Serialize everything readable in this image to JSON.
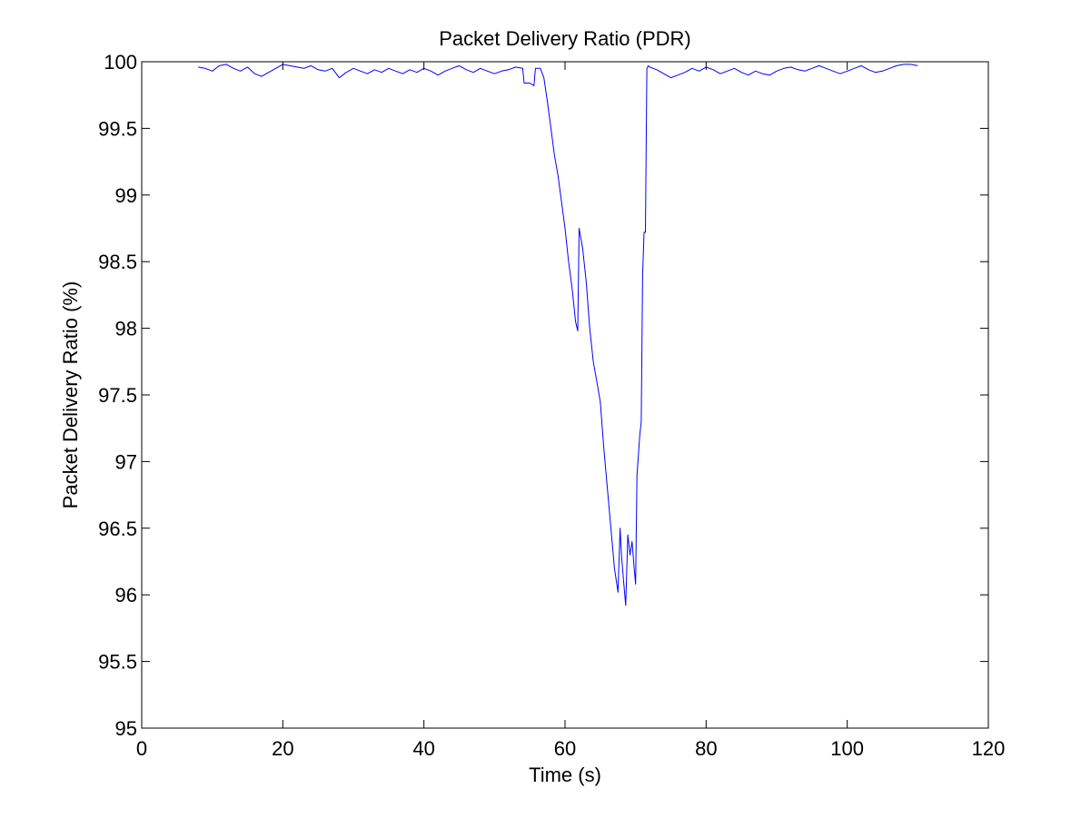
{
  "colors": {
    "background": "#ffffff",
    "axes": "#000000",
    "series_line": "#0000ff"
  },
  "chart_data": {
    "type": "line",
    "title": "Packet Delivery Ratio (PDR)",
    "xlabel": "Time (s)",
    "ylabel": "Packet Delivery Ratio (%)",
    "xlim": [
      0,
      120
    ],
    "ylim": [
      95,
      100
    ],
    "xticks": [
      0,
      20,
      40,
      60,
      80,
      100,
      120
    ],
    "xtick_labels": [
      "0",
      "20",
      "40",
      "60",
      "80",
      "100",
      "120"
    ],
    "yticks": [
      95,
      95.5,
      96,
      96.5,
      97,
      97.5,
      98,
      98.5,
      99,
      99.5,
      100
    ],
    "ytick_labels": [
      "95",
      "95.5",
      "96",
      "96.5",
      "97",
      "97.5",
      "98",
      "98.5",
      "99",
      "99.5",
      "100"
    ],
    "grid": false,
    "legend": "none",
    "series": [
      {
        "x": [
          8.0,
          9.0,
          10.0,
          11.0,
          12.0,
          13.0,
          14.0,
          15.0,
          16.0,
          17.0,
          18.0,
          19.0,
          20.0,
          21.0,
          22.0,
          23.0,
          24.0,
          25.0,
          26.0,
          27.0,
          28.0,
          29.0,
          30.0,
          31.0,
          32.0,
          33.0,
          34.0,
          35.0,
          36.0,
          37.0,
          38.0,
          39.0,
          40.0,
          41.0,
          42.0,
          43.0,
          44.0,
          45.0,
          46.0,
          47.0,
          48.0,
          49.0,
          50.0,
          51.0,
          52.0,
          53.0,
          54.0,
          54.2,
          55.0,
          55.6,
          55.8,
          56.5,
          57.0,
          57.5,
          58.0,
          58.5,
          59.0,
          59.5,
          60.0,
          60.5,
          61.0,
          61.5,
          61.8,
          62.0,
          62.5,
          63.0,
          63.5,
          64.0,
          64.5,
          65.0,
          65.5,
          66.0,
          66.5,
          67.0,
          67.5,
          67.8,
          68.0,
          68.3,
          68.6,
          68.9,
          69.2,
          69.5,
          69.8,
          70.0,
          70.2,
          70.4,
          70.6,
          70.8,
          71.0,
          71.2,
          71.4,
          71.6,
          71.8,
          72.0,
          73.0,
          74.0,
          75.0,
          76.0,
          77.0,
          78.0,
          79.0,
          80.0,
          81.0,
          82.0,
          83.0,
          84.0,
          85.0,
          86.0,
          87.0,
          88.0,
          89.0,
          90.0,
          91.0,
          92.0,
          93.0,
          94.0,
          95.0,
          96.0,
          97.0,
          98.0,
          99.0,
          100.0,
          101.0,
          102.0,
          103.0,
          104.0,
          105.0,
          106.0,
          107.0,
          108.0,
          109.0,
          110.0
        ],
        "values": [
          99.96,
          99.95,
          99.93,
          99.97,
          99.98,
          99.95,
          99.93,
          99.96,
          99.91,
          99.89,
          99.92,
          99.95,
          99.98,
          99.97,
          99.96,
          99.95,
          99.97,
          99.94,
          99.93,
          99.95,
          99.88,
          99.92,
          99.95,
          99.93,
          99.91,
          99.94,
          99.92,
          99.95,
          99.93,
          99.91,
          99.94,
          99.92,
          99.95,
          99.93,
          99.9,
          99.93,
          99.95,
          99.97,
          99.94,
          99.92,
          99.95,
          99.93,
          99.91,
          99.93,
          99.94,
          99.96,
          99.95,
          99.84,
          99.84,
          99.82,
          99.95,
          99.95,
          99.88,
          99.7,
          99.5,
          99.3,
          99.15,
          98.95,
          98.75,
          98.5,
          98.3,
          98.05,
          97.98,
          98.75,
          98.6,
          98.35,
          98.0,
          97.75,
          97.6,
          97.45,
          97.1,
          96.8,
          96.5,
          96.2,
          96.02,
          96.5,
          96.3,
          96.1,
          95.92,
          96.45,
          96.3,
          96.4,
          96.2,
          96.08,
          96.9,
          97.05,
          97.2,
          97.3,
          98.4,
          98.72,
          98.72,
          99.95,
          99.97,
          99.96,
          99.94,
          99.91,
          99.88,
          99.9,
          99.92,
          99.95,
          99.93,
          99.96,
          99.94,
          99.91,
          99.93,
          99.95,
          99.92,
          99.9,
          99.93,
          99.91,
          99.9,
          99.93,
          99.95,
          99.96,
          99.94,
          99.93,
          99.95,
          99.97,
          99.95,
          99.93,
          99.91,
          99.93,
          99.95,
          99.97,
          99.94,
          99.92,
          99.93,
          99.95,
          99.97,
          99.98,
          99.98,
          99.97
        ]
      }
    ]
  }
}
